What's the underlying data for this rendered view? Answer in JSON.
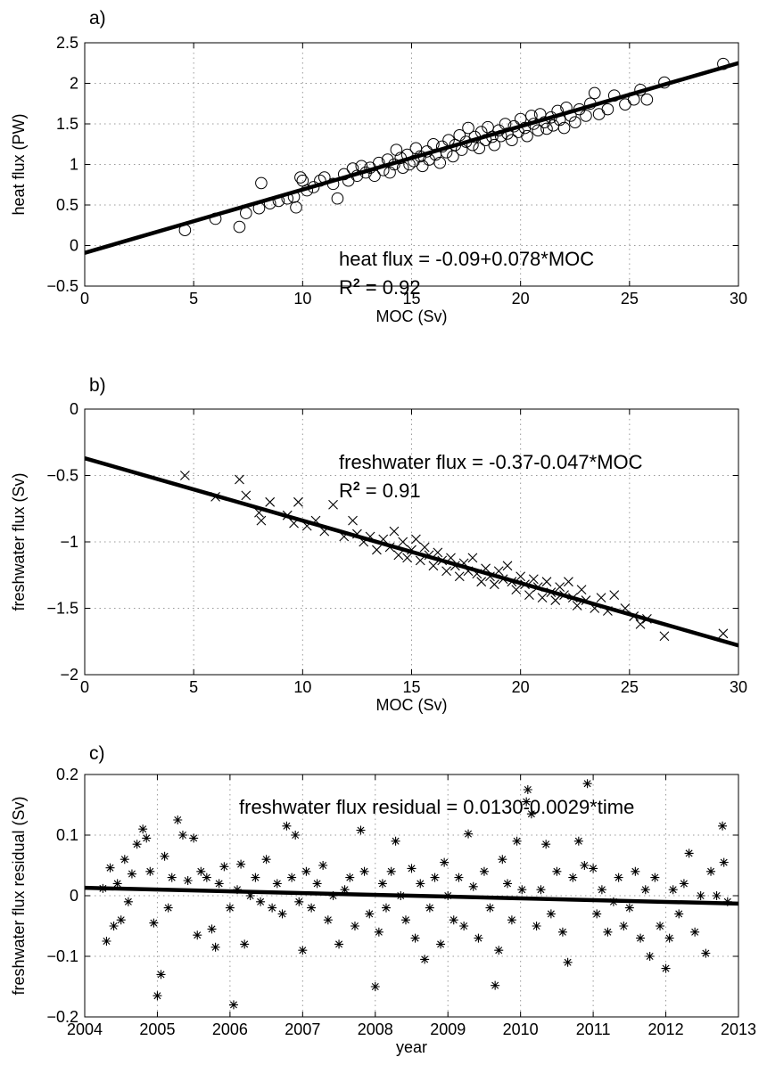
{
  "chart_data": [
    {
      "type": "scatter",
      "panel_label": "a)",
      "xlabel": "MOC (Sv)",
      "ylabel": "heat flux (PW)",
      "xlim": [
        0,
        30
      ],
      "ylim": [
        -0.5,
        2.5
      ],
      "xticks": [
        0,
        5,
        10,
        15,
        20,
        25,
        30
      ],
      "yticks": [
        -0.5,
        0,
        0.5,
        1,
        1.5,
        2,
        2.5
      ],
      "ytick_labels": [
        "−0.5",
        "0",
        "0.5",
        "1",
        "1.5",
        "2",
        "2.5"
      ],
      "xtick_labels": [
        "0",
        "5",
        "10",
        "15",
        "20",
        "25",
        "30"
      ],
      "grid": true,
      "marker": "circle",
      "fit": {
        "intercept": -0.09,
        "slope": 0.078
      },
      "annotation": {
        "equation": "heat flux = -0.09+0.078*MOC",
        "r2_prefix": "R",
        "r2_sup": "2",
        "r2_value": " = 0.92"
      },
      "points": [
        [
          4.6,
          0.19
        ],
        [
          6.0,
          0.33
        ],
        [
          7.1,
          0.23
        ],
        [
          7.4,
          0.4
        ],
        [
          8.0,
          0.46
        ],
        [
          8.1,
          0.77
        ],
        [
          8.5,
          0.52
        ],
        [
          8.9,
          0.55
        ],
        [
          9.3,
          0.58
        ],
        [
          9.6,
          0.6
        ],
        [
          9.7,
          0.47
        ],
        [
          9.9,
          0.84
        ],
        [
          10.0,
          0.8
        ],
        [
          10.2,
          0.68
        ],
        [
          10.5,
          0.72
        ],
        [
          10.8,
          0.8
        ],
        [
          11.0,
          0.84
        ],
        [
          11.4,
          0.76
        ],
        [
          11.6,
          0.58
        ],
        [
          11.9,
          0.88
        ],
        [
          12.1,
          0.8
        ],
        [
          12.3,
          0.95
        ],
        [
          12.5,
          0.86
        ],
        [
          12.7,
          0.98
        ],
        [
          12.9,
          0.9
        ],
        [
          13.1,
          0.96
        ],
        [
          13.3,
          0.86
        ],
        [
          13.5,
          1.02
        ],
        [
          13.7,
          0.93
        ],
        [
          13.9,
          1.06
        ],
        [
          14.0,
          0.9
        ],
        [
          14.2,
          1.0
        ],
        [
          14.3,
          1.18
        ],
        [
          14.5,
          1.08
        ],
        [
          14.6,
          0.96
        ],
        [
          14.8,
          1.12
        ],
        [
          14.9,
          1.0
        ],
        [
          15.1,
          1.04
        ],
        [
          15.2,
          1.2
        ],
        [
          15.4,
          1.1
        ],
        [
          15.5,
          0.98
        ],
        [
          15.7,
          1.16
        ],
        [
          15.8,
          1.06
        ],
        [
          16.0,
          1.25
        ],
        [
          16.1,
          1.12
        ],
        [
          16.3,
          1.02
        ],
        [
          16.4,
          1.22
        ],
        [
          16.6,
          1.15
        ],
        [
          16.7,
          1.3
        ],
        [
          16.9,
          1.1
        ],
        [
          17.0,
          1.24
        ],
        [
          17.2,
          1.36
        ],
        [
          17.3,
          1.18
        ],
        [
          17.5,
          1.28
        ],
        [
          17.6,
          1.45
        ],
        [
          17.8,
          1.24
        ],
        [
          17.9,
          1.34
        ],
        [
          18.1,
          1.2
        ],
        [
          18.2,
          1.4
        ],
        [
          18.4,
          1.3
        ],
        [
          18.5,
          1.46
        ],
        [
          18.7,
          1.34
        ],
        [
          18.8,
          1.24
        ],
        [
          19.0,
          1.42
        ],
        [
          19.1,
          1.35
        ],
        [
          19.3,
          1.5
        ],
        [
          19.4,
          1.38
        ],
        [
          19.6,
          1.3
        ],
        [
          19.7,
          1.47
        ],
        [
          19.9,
          1.4
        ],
        [
          20.0,
          1.56
        ],
        [
          20.2,
          1.45
        ],
        [
          20.3,
          1.35
        ],
        [
          20.5,
          1.6
        ],
        [
          20.6,
          1.5
        ],
        [
          20.8,
          1.42
        ],
        [
          20.9,
          1.62
        ],
        [
          21.1,
          1.52
        ],
        [
          21.2,
          1.44
        ],
        [
          21.4,
          1.58
        ],
        [
          21.5,
          1.48
        ],
        [
          21.7,
          1.66
        ],
        [
          21.8,
          1.55
        ],
        [
          22.0,
          1.45
        ],
        [
          22.1,
          1.7
        ],
        [
          22.3,
          1.6
        ],
        [
          22.5,
          1.52
        ],
        [
          22.7,
          1.68
        ],
        [
          23.0,
          1.6
        ],
        [
          23.2,
          1.75
        ],
        [
          23.4,
          1.88
        ],
        [
          23.6,
          1.62
        ],
        [
          24.0,
          1.68
        ],
        [
          24.3,
          1.85
        ],
        [
          24.8,
          1.74
        ],
        [
          25.2,
          1.8
        ],
        [
          25.5,
          1.92
        ],
        [
          25.8,
          1.8
        ],
        [
          26.6,
          2.01
        ],
        [
          29.3,
          2.24
        ]
      ]
    },
    {
      "type": "scatter",
      "panel_label": "b)",
      "xlabel": "MOC (Sv)",
      "ylabel": "freshwater flux (Sv)",
      "xlim": [
        0,
        30
      ],
      "ylim": [
        -2,
        0
      ],
      "xticks": [
        0,
        5,
        10,
        15,
        20,
        25,
        30
      ],
      "yticks": [
        -2,
        -1.5,
        -1,
        -0.5,
        0
      ],
      "ytick_labels": [
        "−2",
        "−1.5",
        "−1",
        "−0.5",
        "0"
      ],
      "xtick_labels": [
        "0",
        "5",
        "10",
        "15",
        "20",
        "25",
        "30"
      ],
      "grid": true,
      "marker": "x",
      "fit": {
        "intercept": -0.37,
        "slope": -0.047
      },
      "annotation": {
        "equation": "freshwater flux = -0.37-0.047*MOC",
        "r2_prefix": "R",
        "r2_sup": "2",
        "r2_value": " = 0.91"
      },
      "points": [
        [
          4.6,
          -0.5
        ],
        [
          6.0,
          -0.66
        ],
        [
          7.1,
          -0.53
        ],
        [
          7.4,
          -0.65
        ],
        [
          8.0,
          -0.78
        ],
        [
          8.1,
          -0.84
        ],
        [
          8.5,
          -0.7
        ],
        [
          9.3,
          -0.8
        ],
        [
          9.6,
          -0.86
        ],
        [
          9.8,
          -0.7
        ],
        [
          10.2,
          -0.88
        ],
        [
          10.6,
          -0.84
        ],
        [
          11.0,
          -0.92
        ],
        [
          11.4,
          -0.72
        ],
        [
          11.9,
          -0.96
        ],
        [
          12.3,
          -0.84
        ],
        [
          12.5,
          -0.94
        ],
        [
          12.8,
          -1.0
        ],
        [
          13.1,
          -0.96
        ],
        [
          13.4,
          -1.06
        ],
        [
          13.7,
          -0.98
        ],
        [
          14.0,
          -1.04
        ],
        [
          14.2,
          -0.92
        ],
        [
          14.4,
          -1.1
        ],
        [
          14.6,
          -1.0
        ],
        [
          14.8,
          -1.12
        ],
        [
          15.0,
          -1.06
        ],
        [
          15.2,
          -0.98
        ],
        [
          15.4,
          -1.14
        ],
        [
          15.6,
          -1.04
        ],
        [
          15.8,
          -1.1
        ],
        [
          16.0,
          -1.18
        ],
        [
          16.2,
          -1.08
        ],
        [
          16.4,
          -1.14
        ],
        [
          16.6,
          -1.22
        ],
        [
          16.8,
          -1.12
        ],
        [
          17.0,
          -1.18
        ],
        [
          17.2,
          -1.26
        ],
        [
          17.4,
          -1.16
        ],
        [
          17.6,
          -1.22
        ],
        [
          17.8,
          -1.12
        ],
        [
          18.0,
          -1.24
        ],
        [
          18.2,
          -1.3
        ],
        [
          18.4,
          -1.2
        ],
        [
          18.6,
          -1.26
        ],
        [
          18.8,
          -1.32
        ],
        [
          19.0,
          -1.22
        ],
        [
          19.2,
          -1.28
        ],
        [
          19.4,
          -1.18
        ],
        [
          19.6,
          -1.3
        ],
        [
          19.8,
          -1.36
        ],
        [
          20.0,
          -1.26
        ],
        [
          20.2,
          -1.32
        ],
        [
          20.4,
          -1.4
        ],
        [
          20.6,
          -1.28
        ],
        [
          20.8,
          -1.34
        ],
        [
          21.0,
          -1.42
        ],
        [
          21.2,
          -1.3
        ],
        [
          21.4,
          -1.38
        ],
        [
          21.6,
          -1.44
        ],
        [
          21.8,
          -1.34
        ],
        [
          22.0,
          -1.4
        ],
        [
          22.2,
          -1.3
        ],
        [
          22.4,
          -1.42
        ],
        [
          22.6,
          -1.48
        ],
        [
          22.8,
          -1.36
        ],
        [
          23.0,
          -1.44
        ],
        [
          23.4,
          -1.5
        ],
        [
          23.7,
          -1.42
        ],
        [
          24.0,
          -1.52
        ],
        [
          24.3,
          -1.4
        ],
        [
          24.8,
          -1.5
        ],
        [
          25.2,
          -1.56
        ],
        [
          25.5,
          -1.62
        ],
        [
          25.8,
          -1.58
        ],
        [
          26.6,
          -1.71
        ],
        [
          29.3,
          -1.69
        ]
      ]
    },
    {
      "type": "scatter",
      "panel_label": "c)",
      "xlabel": "year",
      "ylabel": "freshwater flux residual (Sv)",
      "xlim": [
        2004,
        2013
      ],
      "ylim": [
        -0.2,
        0.2
      ],
      "xticks": [
        2004,
        2005,
        2006,
        2007,
        2008,
        2009,
        2010,
        2011,
        2012,
        2013
      ],
      "yticks": [
        -0.2,
        -0.1,
        0,
        0.1,
        0.2
      ],
      "ytick_labels": [
        "−0.2",
        "−0.1",
        "0",
        "0.1",
        "0.2"
      ],
      "xtick_labels": [
        "2004",
        "2005",
        "2006",
        "2007",
        "2008",
        "2009",
        "2010",
        "2011",
        "2012",
        "2013"
      ],
      "grid": true,
      "marker": "star",
      "fit": {
        "x0": 2004,
        "intercept": 0.013,
        "slope": -0.0029
      },
      "annotation": {
        "equation": "freshwater flux residual = 0.0130-0.0029*time"
      },
      "points": [
        [
          2004.25,
          0.012
        ],
        [
          2004.3,
          -0.075
        ],
        [
          2004.35,
          0.046
        ],
        [
          2004.4,
          -0.05
        ],
        [
          2004.45,
          0.02
        ],
        [
          2004.5,
          -0.04
        ],
        [
          2004.55,
          0.06
        ],
        [
          2004.6,
          -0.01
        ],
        [
          2004.65,
          0.036
        ],
        [
          2004.72,
          0.085
        ],
        [
          2004.8,
          0.11
        ],
        [
          2004.85,
          0.095
        ],
        [
          2004.9,
          0.04
        ],
        [
          2004.95,
          -0.045
        ],
        [
          2005.0,
          -0.165
        ],
        [
          2005.05,
          -0.13
        ],
        [
          2005.1,
          0.065
        ],
        [
          2005.15,
          -0.02
        ],
        [
          2005.2,
          0.03
        ],
        [
          2005.28,
          0.125
        ],
        [
          2005.35,
          0.1
        ],
        [
          2005.42,
          0.025
        ],
        [
          2005.5,
          0.095
        ],
        [
          2005.55,
          -0.065
        ],
        [
          2005.6,
          0.04
        ],
        [
          2005.68,
          0.03
        ],
        [
          2005.75,
          -0.055
        ],
        [
          2005.8,
          -0.085
        ],
        [
          2005.85,
          0.02
        ],
        [
          2005.92,
          0.048
        ],
        [
          2006.0,
          -0.02
        ],
        [
          2006.05,
          -0.18
        ],
        [
          2006.1,
          0.01
        ],
        [
          2006.15,
          0.052
        ],
        [
          2006.2,
          -0.08
        ],
        [
          2006.28,
          0.0
        ],
        [
          2006.35,
          0.03
        ],
        [
          2006.42,
          -0.01
        ],
        [
          2006.5,
          0.06
        ],
        [
          2006.58,
          -0.02
        ],
        [
          2006.65,
          0.02
        ],
        [
          2006.72,
          -0.03
        ],
        [
          2006.78,
          0.115
        ],
        [
          2006.85,
          0.03
        ],
        [
          2006.9,
          0.1
        ],
        [
          2006.95,
          -0.01
        ],
        [
          2007.0,
          -0.09
        ],
        [
          2007.05,
          0.04
        ],
        [
          2007.12,
          -0.02
        ],
        [
          2007.2,
          0.02
        ],
        [
          2007.28,
          0.05
        ],
        [
          2007.35,
          -0.04
        ],
        [
          2007.42,
          0.0
        ],
        [
          2007.5,
          -0.08
        ],
        [
          2007.58,
          0.01
        ],
        [
          2007.65,
          0.03
        ],
        [
          2007.72,
          -0.05
        ],
        [
          2007.8,
          0.108
        ],
        [
          2007.85,
          0.04
        ],
        [
          2007.92,
          -0.03
        ],
        [
          2008.0,
          -0.15
        ],
        [
          2008.05,
          -0.06
        ],
        [
          2008.1,
          0.02
        ],
        [
          2008.15,
          -0.02
        ],
        [
          2008.22,
          0.04
        ],
        [
          2008.28,
          0.09
        ],
        [
          2008.35,
          0.0
        ],
        [
          2008.42,
          -0.04
        ],
        [
          2008.5,
          0.045
        ],
        [
          2008.55,
          -0.07
        ],
        [
          2008.62,
          0.02
        ],
        [
          2008.68,
          -0.105
        ],
        [
          2008.75,
          -0.02
        ],
        [
          2008.82,
          0.03
        ],
        [
          2008.9,
          -0.08
        ],
        [
          2008.95,
          0.055
        ],
        [
          2009.0,
          0.0
        ],
        [
          2009.08,
          -0.04
        ],
        [
          2009.15,
          0.03
        ],
        [
          2009.22,
          -0.05
        ],
        [
          2009.28,
          0.102
        ],
        [
          2009.35,
          0.015
        ],
        [
          2009.42,
          -0.07
        ],
        [
          2009.5,
          0.04
        ],
        [
          2009.58,
          -0.02
        ],
        [
          2009.65,
          -0.148
        ],
        [
          2009.7,
          -0.09
        ],
        [
          2009.75,
          0.06
        ],
        [
          2009.82,
          0.02
        ],
        [
          2009.88,
          -0.04
        ],
        [
          2009.95,
          0.09
        ],
        [
          2010.02,
          0.01
        ],
        [
          2010.08,
          0.155
        ],
        [
          2010.1,
          0.175
        ],
        [
          2010.15,
          0.135
        ],
        [
          2010.22,
          -0.05
        ],
        [
          2010.28,
          0.01
        ],
        [
          2010.35,
          0.085
        ],
        [
          2010.42,
          -0.03
        ],
        [
          2010.5,
          0.04
        ],
        [
          2010.58,
          -0.06
        ],
        [
          2010.65,
          -0.11
        ],
        [
          2010.72,
          0.03
        ],
        [
          2010.8,
          0.09
        ],
        [
          2010.88,
          0.05
        ],
        [
          2010.92,
          0.185
        ],
        [
          2011.0,
          0.045
        ],
        [
          2011.05,
          -0.03
        ],
        [
          2011.12,
          0.01
        ],
        [
          2011.2,
          -0.06
        ],
        [
          2011.28,
          -0.01
        ],
        [
          2011.35,
          0.03
        ],
        [
          2011.42,
          -0.05
        ],
        [
          2011.5,
          -0.02
        ],
        [
          2011.58,
          0.04
        ],
        [
          2011.65,
          -0.07
        ],
        [
          2011.72,
          0.01
        ],
        [
          2011.78,
          -0.1
        ],
        [
          2011.85,
          0.03
        ],
        [
          2011.92,
          -0.05
        ],
        [
          2012.0,
          -0.12
        ],
        [
          2012.05,
          -0.07
        ],
        [
          2012.1,
          0.01
        ],
        [
          2012.18,
          -0.03
        ],
        [
          2012.25,
          0.02
        ],
        [
          2012.32,
          0.07
        ],
        [
          2012.4,
          -0.06
        ],
        [
          2012.48,
          0.0
        ],
        [
          2012.55,
          -0.095
        ],
        [
          2012.62,
          0.04
        ],
        [
          2012.7,
          0.0
        ],
        [
          2012.78,
          0.115
        ],
        [
          2012.8,
          0.055
        ],
        [
          2012.85,
          -0.01
        ]
      ]
    }
  ]
}
